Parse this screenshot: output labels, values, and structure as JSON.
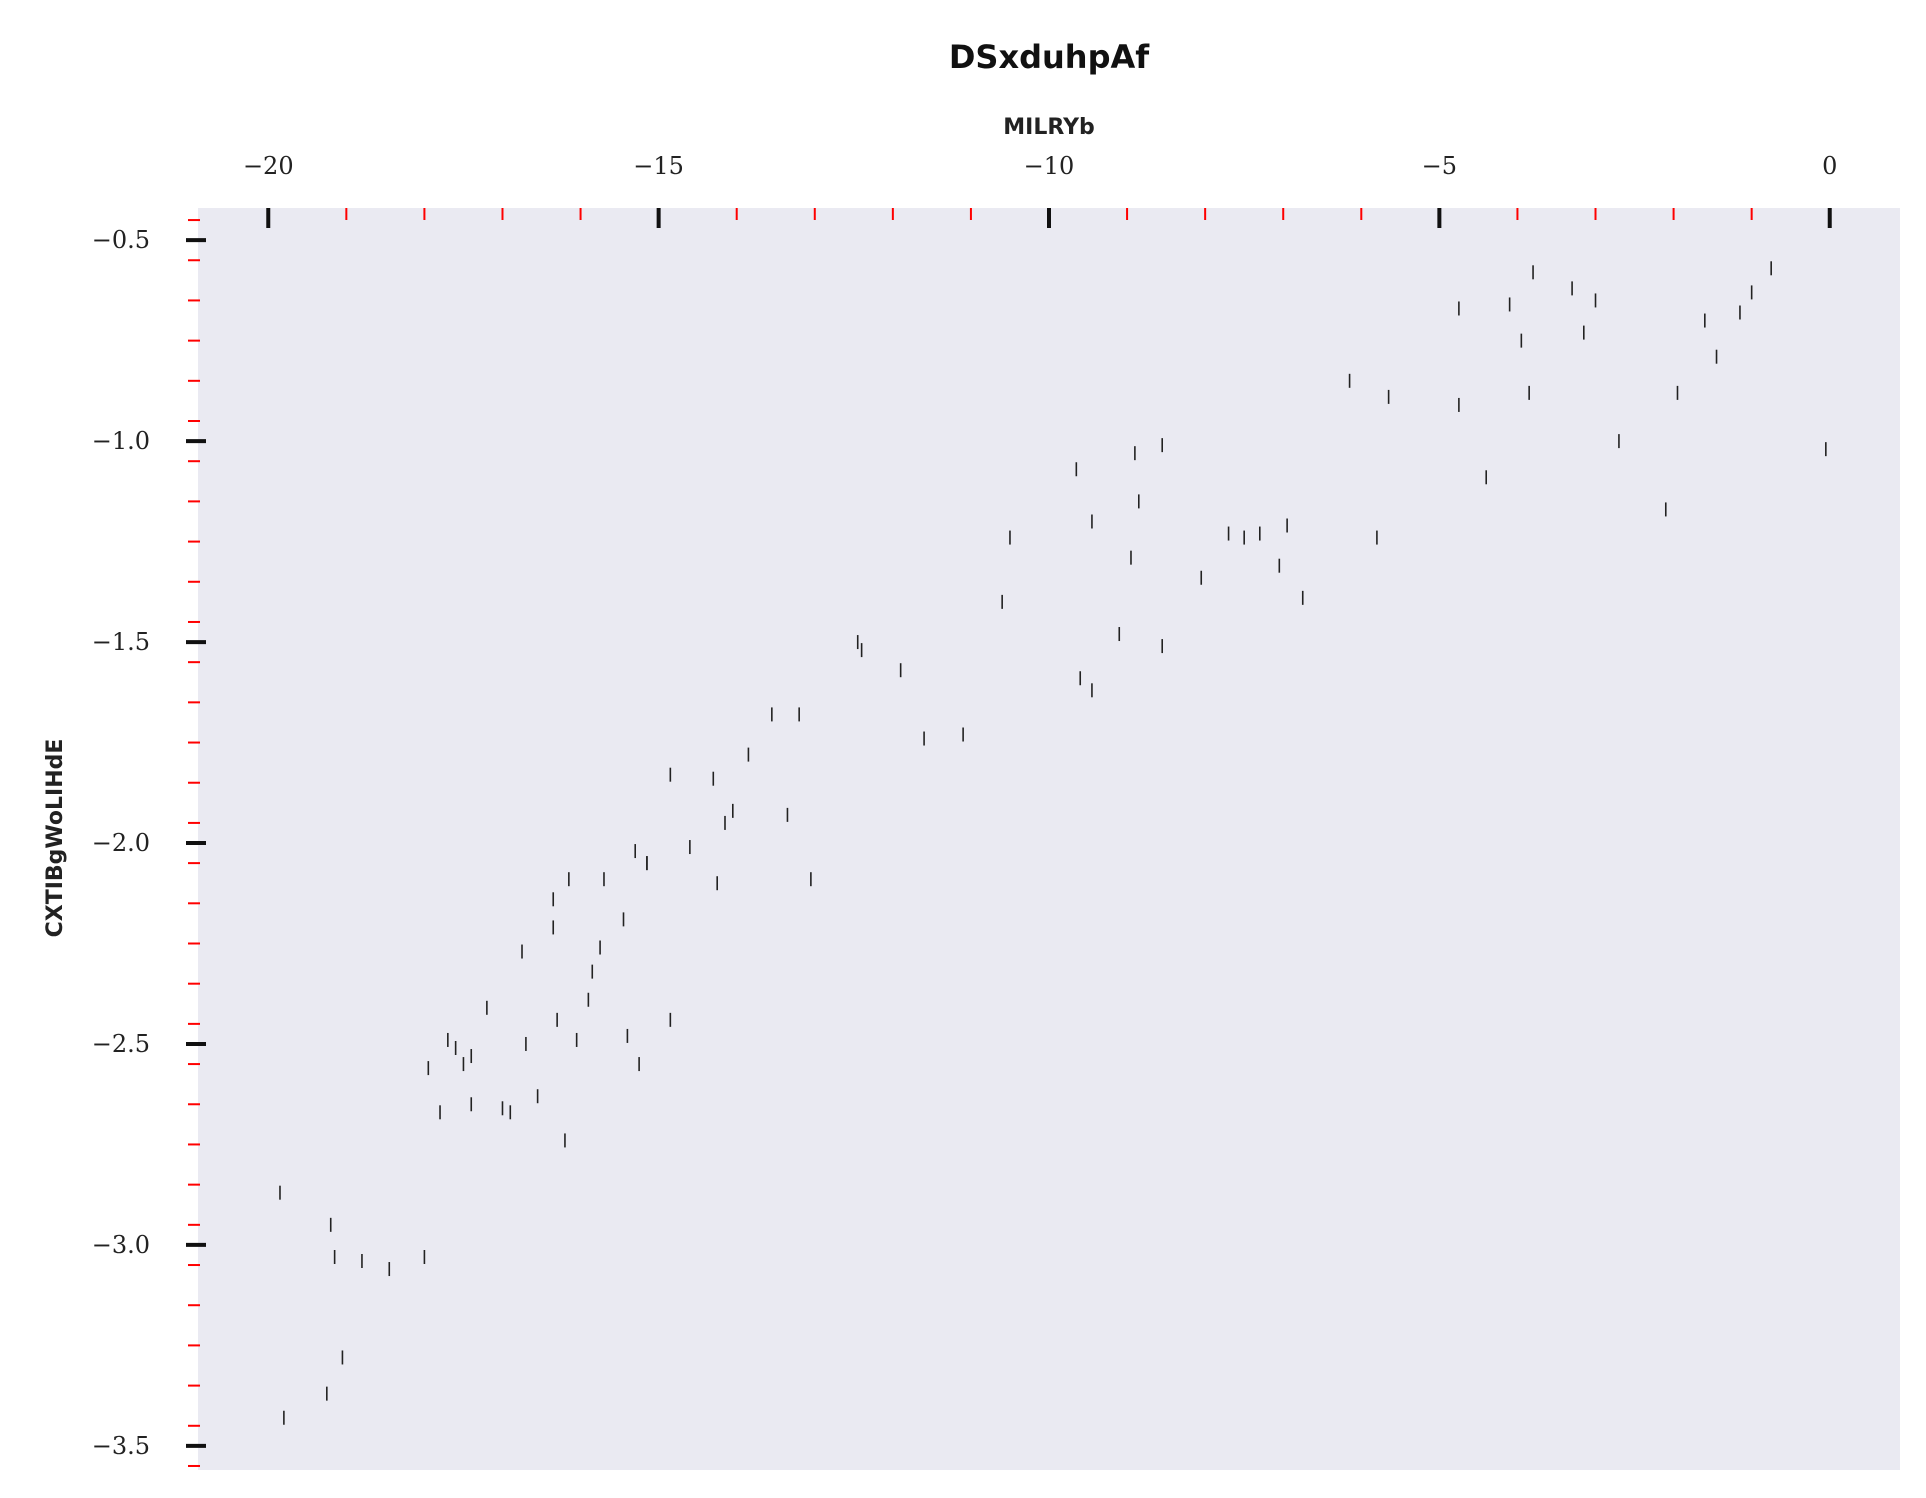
{
  "chart_data": {
    "type": "scatter",
    "title": "DSxduhpAf",
    "xlabel": "MILRYb",
    "ylabel": "CXTIBgWoLIHdE",
    "xlim": [
      -20.9,
      0.9
    ],
    "ylim": [
      -3.56,
      -0.42
    ],
    "x_axis_position": "top",
    "grid": false,
    "marker": "vertical-line",
    "colors": {
      "plot_background": "#eaeaf2",
      "marker": "#222222",
      "major_tick": "#111111",
      "minor_tick": "#ff0000",
      "text": "#222222"
    },
    "x_major_ticks": [
      -20,
      -15,
      -10,
      -5,
      0
    ],
    "x_tick_labels": [
      "−20",
      "−15",
      "−10",
      "−5",
      "0"
    ],
    "x_minor_step": 1,
    "y_major_ticks": [
      -0.5,
      -1.0,
      -1.5,
      -2.0,
      -2.5,
      -3.0,
      -3.5
    ],
    "y_tick_labels": [
      "−0.5",
      "−1.0",
      "−1.5",
      "−2.0",
      "−2.5",
      "−3.0",
      "−3.5"
    ],
    "y_minor_step": 0.1,
    "points": [
      [
        -19.85,
        -2.87
      ],
      [
        -19.8,
        -3.43
      ],
      [
        -19.25,
        -3.37
      ],
      [
        -19.2,
        -2.95
      ],
      [
        -19.15,
        -3.03
      ],
      [
        -19.05,
        -3.28
      ],
      [
        -18.8,
        -3.04
      ],
      [
        -18.45,
        -3.06
      ],
      [
        -18.0,
        -3.03
      ],
      [
        -17.95,
        -2.56
      ],
      [
        -17.8,
        -2.67
      ],
      [
        -17.7,
        -2.49
      ],
      [
        -17.6,
        -2.51
      ],
      [
        -17.5,
        -2.55
      ],
      [
        -17.4,
        -2.53
      ],
      [
        -17.4,
        -2.65
      ],
      [
        -17.2,
        -2.41
      ],
      [
        -17.0,
        -2.66
      ],
      [
        -16.9,
        -2.67
      ],
      [
        -16.75,
        -2.27
      ],
      [
        -16.7,
        -2.5
      ],
      [
        -16.55,
        -2.63
      ],
      [
        -16.35,
        -2.21
      ],
      [
        -16.35,
        -2.14
      ],
      [
        -16.3,
        -2.44
      ],
      [
        -16.2,
        -2.74
      ],
      [
        -16.15,
        -2.09
      ],
      [
        -16.05,
        -2.49
      ],
      [
        -15.9,
        -2.39
      ],
      [
        -15.85,
        -2.32
      ],
      [
        -15.75,
        -2.26
      ],
      [
        -15.7,
        -2.09
      ],
      [
        -15.45,
        -2.19
      ],
      [
        -15.4,
        -2.48
      ],
      [
        -15.3,
        -2.02
      ],
      [
        -15.25,
        -2.55
      ],
      [
        -15.15,
        -2.05
      ],
      [
        -15.15,
        -2.05
      ],
      [
        -14.85,
        -1.83
      ],
      [
        -14.85,
        -2.44
      ],
      [
        -14.6,
        -2.01
      ],
      [
        -14.3,
        -1.84
      ],
      [
        -14.25,
        -2.1
      ],
      [
        -14.15,
        -1.95
      ],
      [
        -14.05,
        -1.92
      ],
      [
        -13.85,
        -1.78
      ],
      [
        -13.55,
        -1.68
      ],
      [
        -13.35,
        -1.93
      ],
      [
        -13.2,
        -1.68
      ],
      [
        -13.05,
        -2.09
      ],
      [
        -12.45,
        -1.5
      ],
      [
        -12.4,
        -1.52
      ],
      [
        -11.9,
        -1.57
      ],
      [
        -11.6,
        -1.74
      ],
      [
        -11.1,
        -1.73
      ],
      [
        -10.6,
        -1.4
      ],
      [
        -10.5,
        -1.24
      ],
      [
        -9.65,
        -1.07
      ],
      [
        -9.6,
        -1.59
      ],
      [
        -9.45,
        -1.2
      ],
      [
        -9.45,
        -1.62
      ],
      [
        -9.1,
        -1.48
      ],
      [
        -8.95,
        -1.29
      ],
      [
        -8.9,
        -1.03
      ],
      [
        -8.85,
        -1.15
      ],
      [
        -8.55,
        -1.01
      ],
      [
        -8.55,
        -1.51
      ],
      [
        -8.05,
        -1.34
      ],
      [
        -7.7,
        -1.23
      ],
      [
        -7.5,
        -1.24
      ],
      [
        -7.3,
        -1.23
      ],
      [
        -7.05,
        -1.31
      ],
      [
        -6.95,
        -1.21
      ],
      [
        -6.75,
        -1.39
      ],
      [
        -6.15,
        -0.85
      ],
      [
        -5.8,
        -1.24
      ],
      [
        -5.65,
        -0.89
      ],
      [
        -4.75,
        -0.67
      ],
      [
        -4.75,
        -0.91
      ],
      [
        -4.4,
        -1.09
      ],
      [
        -4.1,
        -0.66
      ],
      [
        -3.95,
        -0.75
      ],
      [
        -3.85,
        -0.88
      ],
      [
        -3.8,
        -0.58
      ],
      [
        -3.3,
        -0.62
      ],
      [
        -3.15,
        -0.73
      ],
      [
        -3.0,
        -0.65
      ],
      [
        -2.7,
        -1.0
      ],
      [
        -2.1,
        -1.17
      ],
      [
        -1.95,
        -0.88
      ],
      [
        -1.6,
        -0.7
      ],
      [
        -1.45,
        -0.79
      ],
      [
        -1.15,
        -0.68
      ],
      [
        -1.0,
        -0.63
      ],
      [
        -0.75,
        -0.57
      ],
      [
        -0.05,
        -1.02
      ]
    ]
  }
}
